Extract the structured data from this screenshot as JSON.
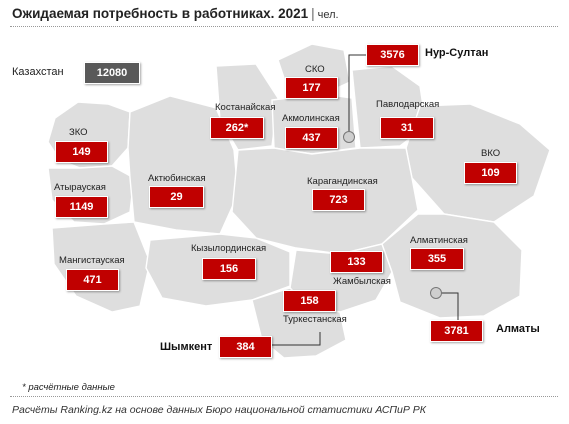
{
  "title": "Ожидаемая потребность в работниках. 2021",
  "unit": "чел.",
  "total": {
    "label": "Казахстан",
    "value": "12080"
  },
  "regions": {
    "sko": {
      "label": "СКО",
      "value": "177"
    },
    "kostanay": {
      "label": "Костанайская",
      "value": "262*"
    },
    "akmola": {
      "label": "Акмолинская",
      "value": "437"
    },
    "pavlodar": {
      "label": "Павлодарская",
      "value": "31"
    },
    "zko": {
      "label": "ЗКО",
      "value": "149"
    },
    "aktobe": {
      "label": "Актюбинская",
      "value": "29"
    },
    "atyrau": {
      "label": "Атырауская",
      "value": "1149"
    },
    "karaganda": {
      "label": "Карагандинская",
      "value": "723"
    },
    "vko": {
      "label": "ВКО",
      "value": "109"
    },
    "mangistau": {
      "label": "Мангистауская",
      "value": "471"
    },
    "kyzylorda": {
      "label": "Кызылординская",
      "value": "156"
    },
    "zhambyl": {
      "label": "Жамбылская",
      "value": "133"
    },
    "almaty_reg": {
      "label": "Алматинская",
      "value": "355"
    },
    "turkestan": {
      "label": "Туркестанская",
      "value": "158"
    }
  },
  "cities": {
    "nursultan": {
      "label": "Нур-Султан",
      "value": "3576"
    },
    "almaty": {
      "label": "Алматы",
      "value": "3781"
    },
    "shymkent": {
      "label": "Шымкент",
      "value": "384"
    }
  },
  "footnote": "* расчётные данные",
  "source": "Расчёты Ranking.kz на основе данных Бюро национальной статистики АСПиР РК",
  "colors": {
    "value_box": "#c00000",
    "total_box": "#595959",
    "map_fill": "#dedede"
  }
}
